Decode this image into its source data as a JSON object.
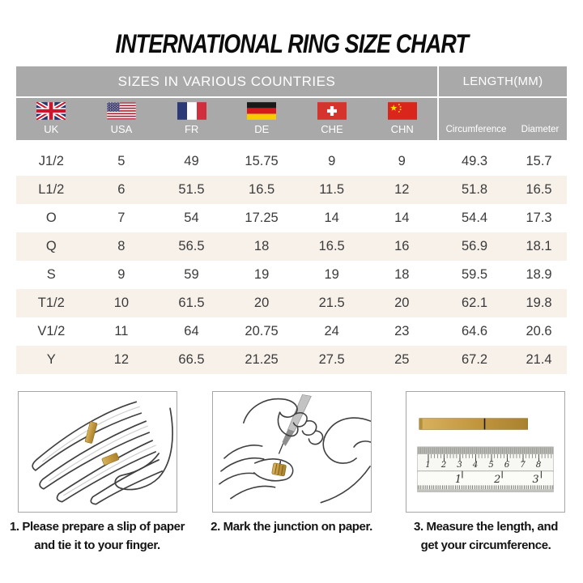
{
  "title": "INTERNATIONAL RING SIZE CHART",
  "table": {
    "header_sizes": "SIZES IN VARIOUS COUNTRIES",
    "header_length": "LENGTH(MM)",
    "countries": [
      "UK",
      "USA",
      "FR",
      "DE",
      "CHE",
      "CHN"
    ],
    "length_columns": [
      "Circumference",
      "Diameter"
    ]
  },
  "chart_data": {
    "type": "table",
    "title": "INTERNATIONAL RING SIZE CHART",
    "columns": [
      "UK",
      "USA",
      "FR",
      "DE",
      "CHE",
      "CHN",
      "Circumference",
      "Diameter"
    ],
    "rows": [
      [
        "J1/2",
        "5",
        "49",
        "15.75",
        "9",
        "9",
        "49.3",
        "15.7"
      ],
      [
        "L1/2",
        "6",
        "51.5",
        "16.5",
        "11.5",
        "12",
        "51.8",
        "16.5"
      ],
      [
        "O",
        "7",
        "54",
        "17.25",
        "14",
        "14",
        "54.4",
        "17.3"
      ],
      [
        "Q",
        "8",
        "56.5",
        "18",
        "16.5",
        "16",
        "56.9",
        "18.1"
      ],
      [
        "S",
        "9",
        "59",
        "19",
        "19",
        "18",
        "59.5",
        "18.9"
      ],
      [
        "T1/2",
        "10",
        "61.5",
        "20",
        "21.5",
        "20",
        "62.1",
        "19.8"
      ],
      [
        "V1/2",
        "11",
        "64",
        "20.75",
        "24",
        "23",
        "64.6",
        "20.6"
      ],
      [
        "Y",
        "12",
        "66.5",
        "21.25",
        "27.5",
        "25",
        "67.2",
        "21.4"
      ]
    ]
  },
  "steps": [
    {
      "caption": "1. Please prepare a slip of paper\nand tie it to your finger."
    },
    {
      "caption": "2. Mark the junction on paper."
    },
    {
      "caption": "3. Measure the length, and\nget your circumference."
    }
  ],
  "ruler": {
    "cm_numbers": [
      "1",
      "2",
      "3",
      "4",
      "5",
      "6",
      "7",
      "8"
    ],
    "inch_numbers": [
      "1",
      "2",
      "3"
    ]
  },
  "colors": {
    "header_bg": "#a9a9a9",
    "row_alt_bg": "#f7f1ea",
    "paper_gold": "#c49c48",
    "text_dark": "#3b3b3b"
  }
}
